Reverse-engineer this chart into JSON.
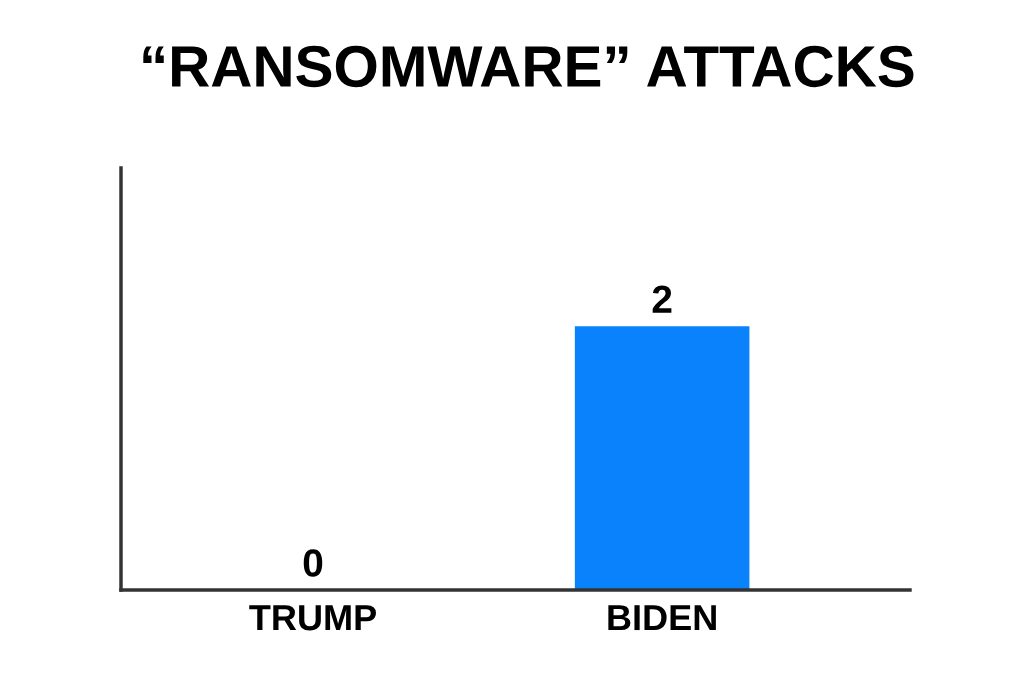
{
  "chart_data": {
    "type": "bar",
    "title": "“RANSOMWARE” ATTACKS",
    "categories": [
      "TRUMP",
      "BIDEN"
    ],
    "values": [
      0,
      2
    ],
    "color": "#0a82fc",
    "ylim": [
      0,
      3.2
    ],
    "data_labels": true,
    "tick_labels": "x"
  }
}
